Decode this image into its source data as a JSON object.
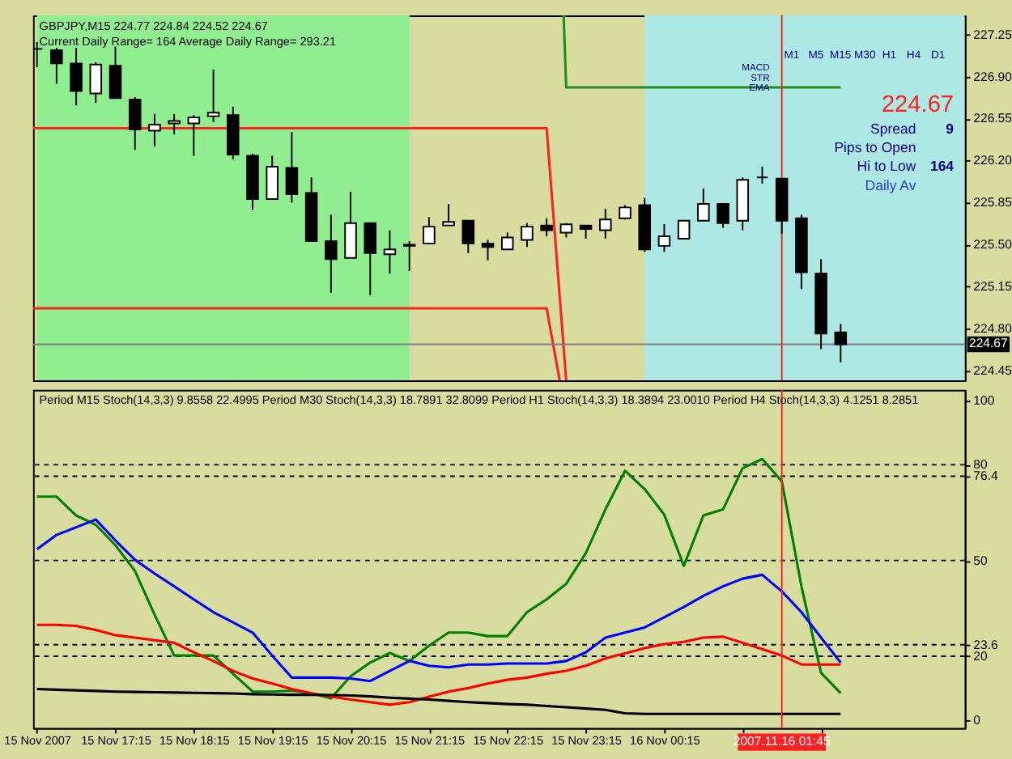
{
  "chart_data": [
    {
      "type": "candlestick",
      "title": "GBPJPY,M15  224.77 224.84 224.52 224.67",
      "subtitle": "Current Daily Range= 164    Average Daily Range= 293.21",
      "x": [
        "2007-11-15T16:15",
        "2007-11-15T16:30",
        "2007-11-15T16:45",
        "2007-11-15T17:00",
        "2007-11-15T17:15",
        "2007-11-15T17:30",
        "2007-11-15T17:45",
        "2007-11-15T18:00",
        "2007-11-15T18:15",
        "2007-11-15T18:30",
        "2007-11-15T18:45",
        "2007-11-15T19:00",
        "2007-11-15T19:15",
        "2007-11-15T19:30",
        "2007-11-15T19:45",
        "2007-11-15T20:00",
        "2007-11-15T20:15",
        "2007-11-15T20:30",
        "2007-11-15T20:45",
        "2007-11-15T21:00",
        "2007-11-15T21:15",
        "2007-11-15T21:30",
        "2007-11-15T21:45",
        "2007-11-15T22:00",
        "2007-11-15T22:15",
        "2007-11-15T22:30",
        "2007-11-15T22:45",
        "2007-11-15T23:00",
        "2007-11-15T23:15",
        "2007-11-15T23:30",
        "2007-11-15T23:45",
        "2007-11-16T00:00",
        "2007-11-16T00:15",
        "2007-11-16T00:30",
        "2007-11-16T00:45",
        "2007-11-16T01:00",
        "2007-11-16T01:15",
        "2007-11-16T01:30",
        "2007-11-16T01:45",
        "2007-11-16T02:00",
        "2007-11-16T02:15",
        "2007-11-16T02:30"
      ],
      "ohlc": [
        [
          227.13,
          227.19,
          226.98,
          227.13
        ],
        [
          227.12,
          227.14,
          226.84,
          227.01
        ],
        [
          227.01,
          227.14,
          226.66,
          226.78
        ],
        [
          226.76,
          227.02,
          226.68,
          227.0
        ],
        [
          226.99,
          227.15,
          226.72,
          226.72
        ],
        [
          226.71,
          226.73,
          226.29,
          226.46
        ],
        [
          226.45,
          226.59,
          226.32,
          226.5
        ],
        [
          226.51,
          226.59,
          226.42,
          226.53
        ],
        [
          226.51,
          226.58,
          226.24,
          226.56
        ],
        [
          226.57,
          226.96,
          226.52,
          226.6
        ],
        [
          226.58,
          226.65,
          226.21,
          226.25
        ],
        [
          226.24,
          226.26,
          225.79,
          225.88
        ],
        [
          225.88,
          226.24,
          225.88,
          226.15
        ],
        [
          226.14,
          226.44,
          225.85,
          225.92
        ],
        [
          225.93,
          226.06,
          225.53,
          225.53
        ],
        [
          225.53,
          225.75,
          225.1,
          225.38
        ],
        [
          225.39,
          225.94,
          225.39,
          225.68
        ],
        [
          225.68,
          225.68,
          225.08,
          225.43
        ],
        [
          225.42,
          225.62,
          225.26,
          225.46
        ],
        [
          225.5,
          225.53,
          225.28,
          225.49
        ],
        [
          225.51,
          225.73,
          225.51,
          225.65
        ],
        [
          225.66,
          225.84,
          225.66,
          225.69
        ],
        [
          225.7,
          225.7,
          225.43,
          225.51
        ],
        [
          225.51,
          225.54,
          225.37,
          225.48
        ],
        [
          225.46,
          225.6,
          225.46,
          225.56
        ],
        [
          225.54,
          225.68,
          225.48,
          225.65
        ],
        [
          225.66,
          225.72,
          225.57,
          225.62
        ],
        [
          225.6,
          225.68,
          225.56,
          225.67
        ],
        [
          225.66,
          225.66,
          225.55,
          225.63
        ],
        [
          225.62,
          225.8,
          225.55,
          225.71
        ],
        [
          225.72,
          225.83,
          225.71,
          225.81
        ],
        [
          225.83,
          225.89,
          225.44,
          225.46
        ],
        [
          225.49,
          225.67,
          225.44,
          225.57
        ],
        [
          225.55,
          225.7,
          225.55,
          225.7
        ],
        [
          225.7,
          225.97,
          225.7,
          225.84
        ],
        [
          225.84,
          225.84,
          225.64,
          225.68
        ],
        [
          225.7,
          226.06,
          225.62,
          226.04
        ],
        [
          226.06,
          226.15,
          226.01,
          226.06
        ],
        [
          226.05,
          226.05,
          225.59,
          225.7
        ],
        [
          225.72,
          225.75,
          225.13,
          225.27
        ],
        [
          225.26,
          225.38,
          224.63,
          224.76
        ],
        [
          224.77,
          224.84,
          224.52,
          224.67
        ]
      ],
      "xlim": [
        "2007-11-15T16:12",
        "2007-11-16T04:05"
      ],
      "ylim": [
        224.37,
        227.41
      ],
      "yticks": [
        {
          "value": 224.45,
          "label": "224.45"
        },
        {
          "value": 224.8,
          "label": "224.80"
        },
        {
          "value": 225.15,
          "label": "225.15"
        },
        {
          "value": 225.5,
          "label": "225.50"
        },
        {
          "value": 225.85,
          "label": "225.85"
        },
        {
          "value": 226.2,
          "label": "226.20"
        },
        {
          "value": 226.55,
          "label": "226.55"
        },
        {
          "value": 226.9,
          "label": "226.90"
        },
        {
          "value": 227.25,
          "label": "227.25"
        }
      ],
      "tick_labels": "y",
      "grid": false,
      "bands": [
        {
          "axis": "x",
          "from": "2007-11-15T16:15",
          "to": "2007-11-15T21:00",
          "color": "#90ee90"
        },
        {
          "axis": "x",
          "from": "2007-11-16T00:00",
          "to": "2007-11-16T04:05",
          "color": "#aee8e4"
        }
      ],
      "ref_lines": [
        {
          "axis": "y",
          "value": 224.67,
          "label": "224.67",
          "color": "#808080"
        },
        {
          "axis": "x",
          "value": "2007-11-16T01:45",
          "color": "#ff2020"
        }
      ],
      "series": [
        {
          "type": "line",
          "color": "#ff2020",
          "x": [
            "2007-11-15T16:12",
            "2007-11-15T22:45",
            "2007-11-15T23:00"
          ],
          "values": [
            226.47,
            226.47,
            224.37
          ]
        },
        {
          "type": "line",
          "color": "#ff2020",
          "x": [
            "2007-11-15T16:12",
            "2007-11-15T22:45",
            "2007-11-15T22:55"
          ],
          "values": [
            224.97,
            224.97,
            224.37
          ]
        },
        {
          "type": "line",
          "color": "#228b22",
          "x": [
            "2007-11-15T22:58",
            "2007-11-15T23:00",
            "2007-11-16T02:30"
          ],
          "values": [
            227.41,
            226.81,
            226.81
          ]
        }
      ],
      "annotations": [
        "M1",
        "M5",
        "M15",
        "M30",
        "H1",
        "H4",
        "D1",
        "MACD",
        "STR",
        "EMA",
        "224.67",
        "Spread",
        "9",
        "Pips to Open",
        "Hi to Low",
        "164",
        "Daily Av"
      ]
    },
    {
      "type": "line",
      "title": "Period M15 Stoch(14,3,3) 9.8558 22.4995  Period M30 Stoch(14,3,3) 18.7891 32.8099  Period H1 Stoch(14,3,3) 18.3894 23.0010  Period H4 Stoch(14,3,3) 4.1251 8.2851",
      "x": [
        "2007-11-15T16:15",
        "2007-11-15T16:30",
        "2007-11-15T16:45",
        "2007-11-15T17:00",
        "2007-11-15T17:15",
        "2007-11-15T17:30",
        "2007-11-15T17:45",
        "2007-11-15T18:00",
        "2007-11-15T18:15",
        "2007-11-15T18:30",
        "2007-11-15T18:45",
        "2007-11-15T19:00",
        "2007-11-15T19:15",
        "2007-11-15T19:30",
        "2007-11-15T19:45",
        "2007-11-15T20:00",
        "2007-11-15T20:15",
        "2007-11-15T20:30",
        "2007-11-15T20:45",
        "2007-11-15T21:00",
        "2007-11-15T21:15",
        "2007-11-15T21:30",
        "2007-11-15T21:45",
        "2007-11-15T22:00",
        "2007-11-15T22:15",
        "2007-11-15T22:30",
        "2007-11-15T22:45",
        "2007-11-15T23:00",
        "2007-11-15T23:15",
        "2007-11-15T23:30",
        "2007-11-15T23:45",
        "2007-11-16T00:00",
        "2007-11-16T00:15",
        "2007-11-16T00:30",
        "2007-11-16T00:45",
        "2007-11-16T01:00",
        "2007-11-16T01:15",
        "2007-11-16T01:30",
        "2007-11-16T01:45",
        "2007-11-16T02:00",
        "2007-11-16T02:15",
        "2007-11-16T02:30"
      ],
      "series": [
        {
          "color": "#008000",
          "values": [
            70.0,
            70.0,
            64.1,
            61.2,
            54.8,
            46.7,
            33.0,
            20.2,
            20.2,
            20.2,
            14.5,
            8.9,
            8.9,
            9.2,
            8.4,
            6.8,
            13.7,
            18.0,
            21.0,
            18.5,
            23.3,
            27.4,
            27.4,
            26.3,
            26.3,
            33.8,
            37.8,
            42.7,
            52.3,
            66.0,
            78.1,
            72.4,
            64.4,
            48.3,
            64.1,
            66.0,
            78.9,
            81.8,
            74.8,
            41.9,
            14.8,
            8.4
          ]
        },
        {
          "color": "#0000ff",
          "values": [
            53.5,
            58.0,
            60.4,
            62.8,
            56.3,
            50.2,
            45.9,
            41.9,
            37.8,
            33.8,
            30.6,
            27.4,
            20.2,
            13.3,
            13.3,
            13.3,
            13.0,
            12.2,
            15.4,
            18.5,
            17.0,
            16.5,
            17.4,
            17.4,
            17.7,
            17.7,
            17.7,
            18.5,
            21.2,
            25.8,
            27.4,
            29.0,
            32.2,
            35.4,
            38.9,
            41.9,
            44.3,
            45.5,
            40.3,
            33.8,
            25.8,
            18.0
          ]
        },
        {
          "color": "#ff0000",
          "values": [
            29.8,
            29.8,
            29.5,
            28.2,
            26.6,
            25.8,
            25.0,
            24.2,
            21.2,
            18.5,
            15.4,
            13.0,
            11.4,
            9.7,
            8.4,
            7.3,
            6.4,
            5.6,
            4.8,
            5.6,
            7.3,
            8.9,
            10.0,
            11.4,
            12.6,
            13.3,
            14.5,
            15.4,
            17.0,
            19.3,
            20.9,
            22.5,
            23.8,
            24.5,
            25.8,
            26.1,
            24.2,
            22.2,
            20.2,
            17.4,
            17.4,
            17.4
          ]
        },
        {
          "color": "#000000",
          "values": [
            9.7,
            9.5,
            9.3,
            9.1,
            8.9,
            8.8,
            8.7,
            8.6,
            8.5,
            8.4,
            8.3,
            8.1,
            8.0,
            7.9,
            7.9,
            7.8,
            7.7,
            7.4,
            7.0,
            6.7,
            6.4,
            6.0,
            5.6,
            5.3,
            5.0,
            4.8,
            4.4,
            4.0,
            3.6,
            3.2,
            2.1,
            1.9,
            1.9,
            1.9,
            1.9,
            1.9,
            1.9,
            1.9,
            1.9,
            1.9,
            1.9,
            1.9
          ]
        }
      ],
      "xlim": [
        "2007-11-15T16:12",
        "2007-11-16T04:05"
      ],
      "ylim": [
        -2.5,
        103.5
      ],
      "yticks": [
        0,
        20,
        23.6,
        50,
        76.4,
        80,
        100
      ],
      "xticks": [
        {
          "value": "2007-11-15T16:15",
          "label": "15 Nov 2007"
        },
        {
          "value": "2007-11-15T17:15",
          "label": "15 Nov 17:15"
        },
        {
          "value": "2007-11-15T18:15",
          "label": "15 Nov 18:15"
        },
        {
          "value": "2007-11-15T19:15",
          "label": "15 Nov 19:15"
        },
        {
          "value": "2007-11-15T20:15",
          "label": "15 Nov 20:15"
        },
        {
          "value": "2007-11-15T21:15",
          "label": "15 Nov 21:15"
        },
        {
          "value": "2007-11-15T22:15",
          "label": "15 Nov 22:15"
        },
        {
          "value": "2007-11-15T23:15",
          "label": "15 Nov 23:15"
        },
        {
          "value": "2007-11-16T00:15",
          "label": "16 Nov 00:15"
        },
        {
          "value": "2007-11-16T01:15",
          "label": null
        },
        {
          "value": "2007-11-16T02:15",
          "label": null
        }
      ],
      "grid": false,
      "marker": "none",
      "line_style": "solid",
      "ref_lines": [
        {
          "axis": "y",
          "value": 80,
          "line_style": "dashed",
          "color": "#000000"
        },
        {
          "axis": "y",
          "value": 76.4,
          "line_style": "dashed",
          "color": "#000000"
        },
        {
          "axis": "y",
          "value": 50,
          "line_style": "dashed",
          "color": "#000000"
        },
        {
          "axis": "y",
          "value": 23.6,
          "line_style": "dashed",
          "color": "#000000"
        },
        {
          "axis": "y",
          "value": 20,
          "line_style": "dashed",
          "color": "#000000"
        },
        {
          "axis": "x",
          "value": "2007-11-16T01:45",
          "label": "2007.11.16 01:45",
          "color": "#ff2020"
        }
      ]
    }
  ]
}
